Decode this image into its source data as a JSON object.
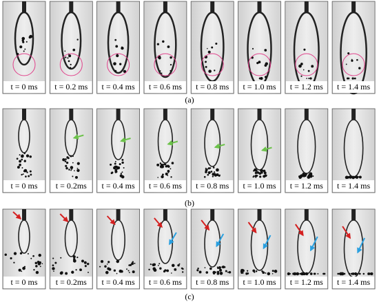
{
  "panels": [
    {
      "label": "(a)",
      "frames": [
        "t = 0 ms",
        "t = 0.2 ms",
        "t = 0.4 ms",
        "t = 0.6 ms",
        "t = 0.8 ms",
        "t = 1.0 ms",
        "t = 1.2 ms",
        "t = 1.4 ms"
      ]
    },
    {
      "label": "(b)",
      "frames": [
        "t = 0 ms",
        "t = 0.2ms",
        "t = 0.4 ms",
        "t = 0.6 ms",
        "t = 0.8 ms",
        "t = 1.0 ms",
        "t = 1.2 ms",
        "t = 1.4 ms"
      ]
    },
    {
      "label": "(c)",
      "frames": [
        "t = 0 ms",
        "t = 0.2ms",
        "t = 0.4 ms",
        "t = 0.6 ms",
        "t = 0.8 ms",
        "t = 1.0 ms",
        "t = 1.2 ms",
        "t = 1.4 ms"
      ]
    }
  ]
}
